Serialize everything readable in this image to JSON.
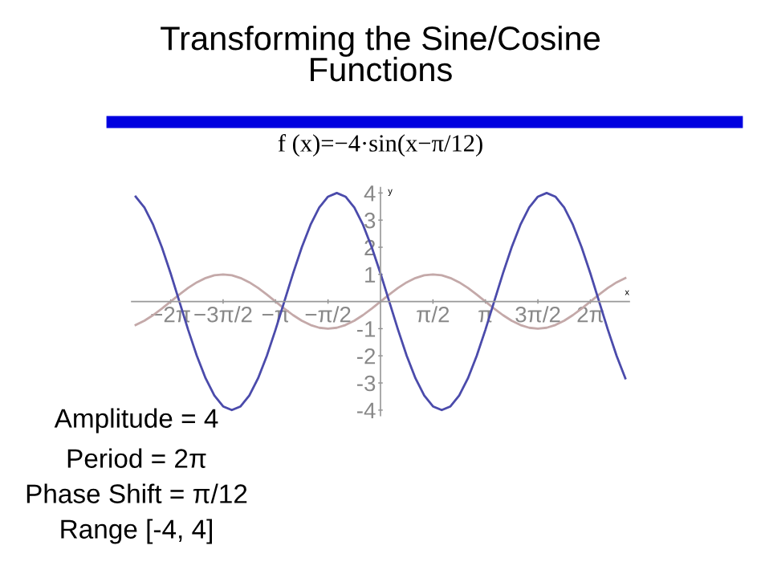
{
  "chart_data": {
    "type": "line",
    "title": "Transforming the Sine/Cosine\nFunctions",
    "subtitle": "f (x)=−4·sin(x−π/12)",
    "xlabel": "x",
    "ylabel": "y",
    "annotations": [
      "Amplitude = 4",
      "Period = 2π",
      "Phase Shift = π/12",
      "Range [-4, 4]"
    ],
    "x": [
      -7.33,
      -7.069,
      -6.807,
      -6.545,
      -6.283,
      -6.021,
      -5.76,
      -5.498,
      -5.236,
      -4.974,
      -4.712,
      -4.451,
      -4.189,
      -3.927,
      -3.665,
      -3.403,
      -3.142,
      -2.88,
      -2.618,
      -2.356,
      -2.094,
      -1.833,
      -1.571,
      -1.309,
      -1.047,
      -0.785,
      -0.524,
      -0.262,
      0,
      0.262,
      0.524,
      0.785,
      1.047,
      1.309,
      1.571,
      1.833,
      2.094,
      2.356,
      2.618,
      2.88,
      3.142,
      3.403,
      3.665,
      3.927,
      4.189,
      4.451,
      4.712,
      4.974,
      5.236,
      5.498,
      5.76,
      6.021,
      6.283,
      6.545,
      6.807,
      7.069,
      7.33
    ],
    "series": [
      {
        "color": "#c4a9a9",
        "values": [
          -0.866,
          -0.707,
          -0.5,
          -0.259,
          0,
          0.259,
          0.5,
          0.707,
          0.866,
          0.966,
          1,
          0.966,
          0.866,
          0.707,
          0.5,
          0.259,
          0,
          -0.259,
          -0.5,
          -0.707,
          -0.866,
          -0.966,
          -1,
          -0.966,
          -0.866,
          -0.707,
          -0.5,
          -0.259,
          0,
          0.259,
          0.5,
          0.707,
          0.866,
          0.966,
          1,
          0.966,
          0.866,
          0.707,
          0.5,
          0.259,
          0,
          -0.259,
          -0.5,
          -0.707,
          -0.866,
          -0.966,
          -1,
          -0.966,
          -0.866,
          -0.707,
          -0.5,
          -0.259,
          0,
          0.259,
          0.5,
          0.707,
          0.866
        ]
      },
      {
        "color": "#4b4bab",
        "values": [
          3.864,
          3.464,
          2.828,
          2,
          1.036,
          0,
          -1.036,
          -2,
          -2.828,
          -3.464,
          -3.864,
          -4,
          -3.864,
          -3.464,
          -2.828,
          -2,
          -1.036,
          0,
          1.036,
          2,
          2.828,
          3.464,
          3.864,
          4,
          3.864,
          3.464,
          2.828,
          2,
          1.036,
          0,
          -1.036,
          -2,
          -2.828,
          -3.464,
          -3.864,
          -4,
          -3.864,
          -3.464,
          -2.828,
          -2,
          -1.036,
          0,
          1.036,
          2,
          2.828,
          3.464,
          3.864,
          4,
          3.864,
          3.464,
          2.828,
          2,
          1.036,
          0,
          -1.036,
          -2,
          -2.828
        ]
      }
    ],
    "xlim": [
      -7.45,
      7.45
    ],
    "ylim": [
      -4.2,
      4.2
    ],
    "xticks": [
      {
        "value": -6.283,
        "label": "−2π"
      },
      {
        "value": -4.712,
        "label": "−3π/2"
      },
      {
        "value": -3.142,
        "label": "−π"
      },
      {
        "value": -1.571,
        "label": "−π/2"
      },
      {
        "value": 1.571,
        "label": "π/2"
      },
      {
        "value": 3.142,
        "label": "π"
      },
      {
        "value": 4.712,
        "label": "3π/2"
      },
      {
        "value": 6.283,
        "label": "2π"
      }
    ],
    "yticks": [
      -4,
      -3,
      -2,
      -1,
      1,
      2,
      3,
      4
    ],
    "grid": false,
    "legend": false,
    "marker": "none",
    "line_style": "solid"
  }
}
